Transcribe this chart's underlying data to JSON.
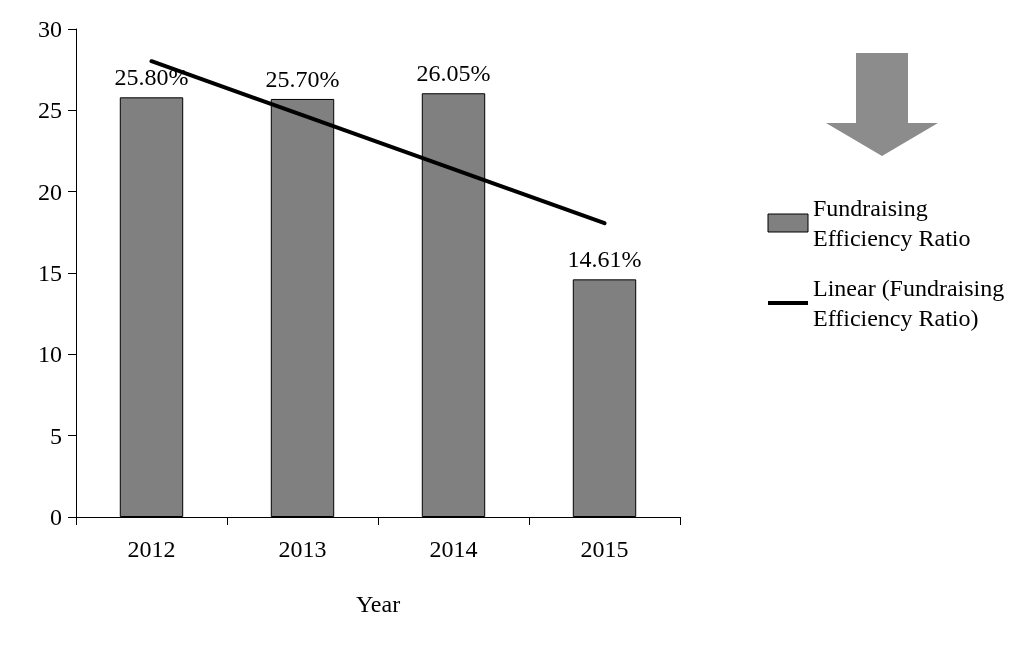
{
  "chart_data": {
    "type": "bar",
    "xlabel": "Year",
    "categories": [
      "2012",
      "2013",
      "2014",
      "2015"
    ],
    "series": [
      {
        "name": "Fundraising Efficiency Ratio",
        "color": "#808080",
        "values": [
          25.8,
          25.7,
          26.05,
          14.61
        ],
        "value_labels": [
          "25.80%",
          "25.70%",
          "26.05%",
          "14.61%"
        ]
      },
      {
        "name": "Linear (Fundraising Efficiency Ratio)",
        "type": "line",
        "color": "#000000",
        "marker": "none",
        "line_style": "solid",
        "values": [
          28.02,
          24.7,
          21.38,
          18.06
        ]
      }
    ],
    "ylim": [
      0,
      30
    ],
    "yticks": [
      0,
      5,
      10,
      15,
      20,
      25,
      30
    ],
    "grid": false,
    "legend": "right"
  }
}
